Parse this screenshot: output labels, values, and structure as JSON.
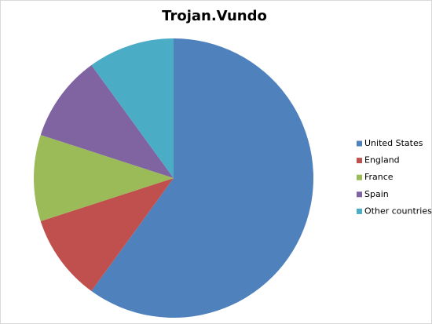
{
  "chart_data": {
    "type": "pie",
    "title": "Trojan.Vundo",
    "categories": [
      "United States",
      "England",
      "France",
      "Spain",
      "Other countries"
    ],
    "values": [
      60,
      10,
      10,
      10,
      10
    ],
    "colors": [
      "#4f81bd",
      "#c0504d",
      "#9bbb59",
      "#8064a2",
      "#4bacc6"
    ],
    "legend": "right"
  }
}
